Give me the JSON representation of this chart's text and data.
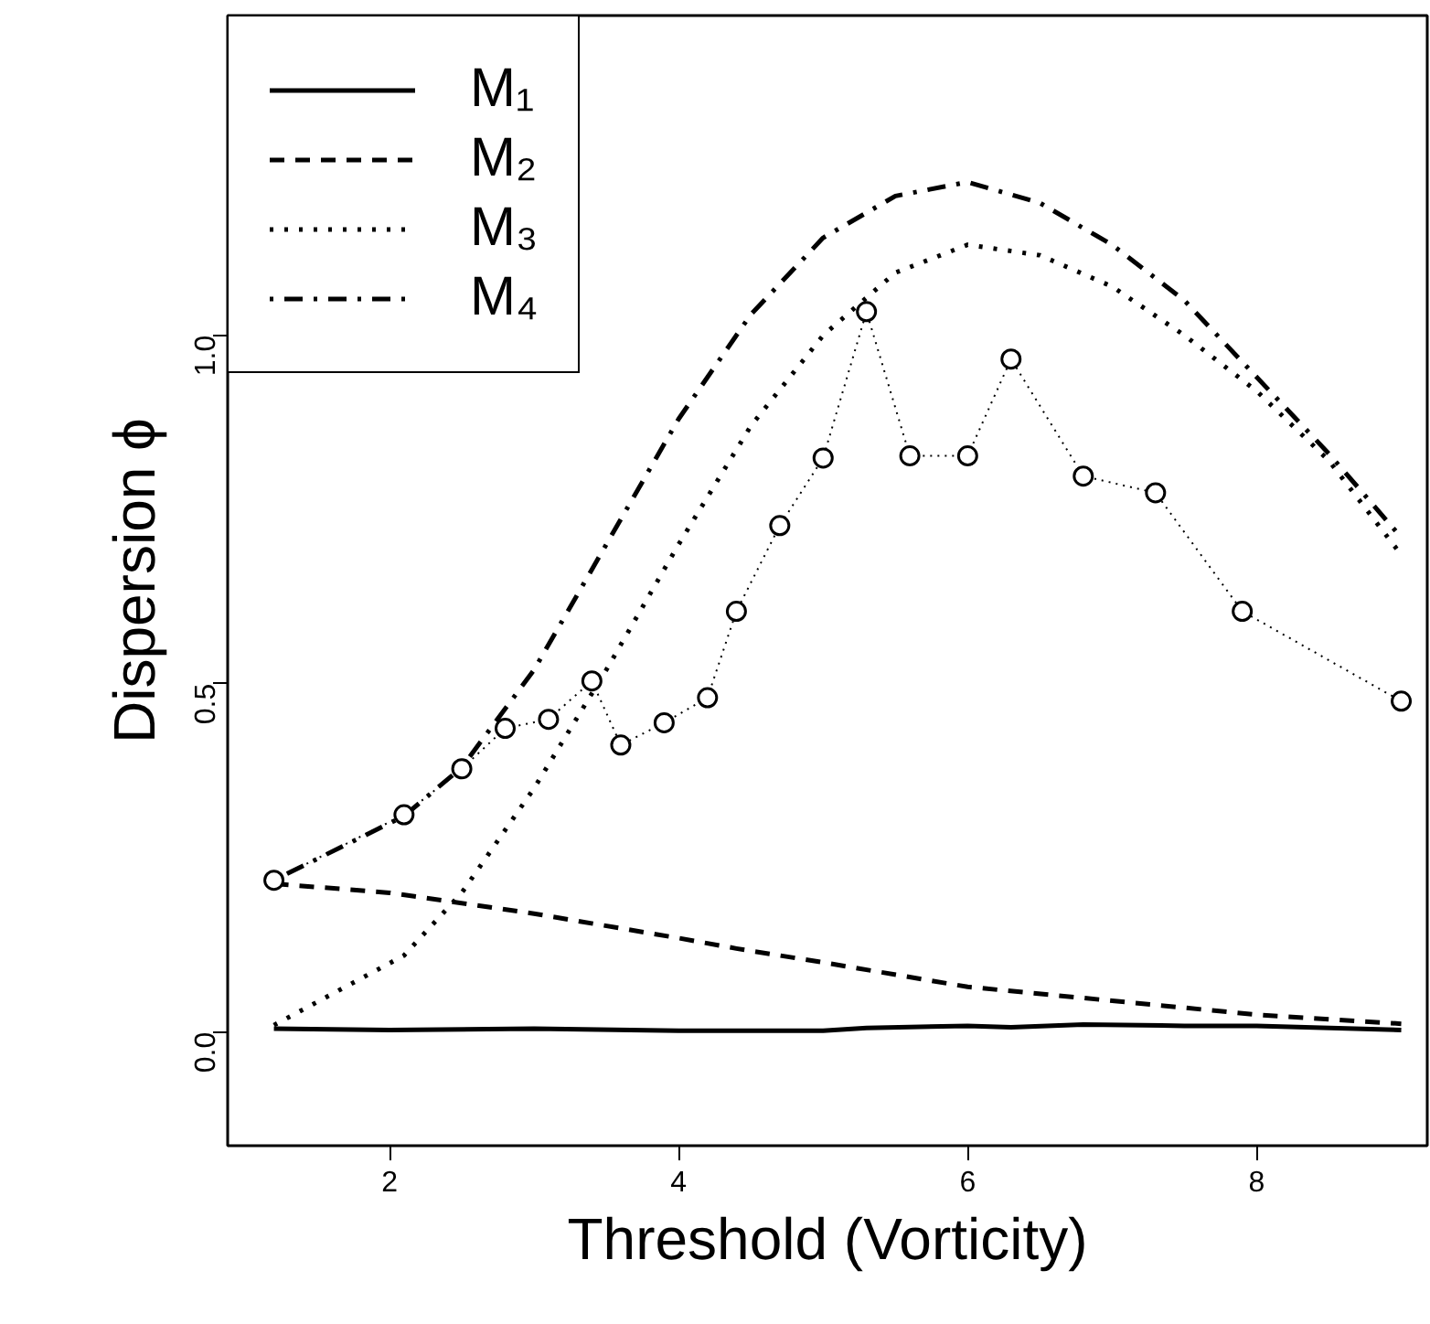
{
  "chart_data": {
    "type": "line",
    "xlabel": "Threshold (Vorticity)",
    "ylabel": "Dispersion ϕ",
    "xlim": [
      0.88,
      9.18
    ],
    "ylim": [
      -0.163,
      1.459
    ],
    "xticks": [
      2,
      4,
      6,
      8
    ],
    "yticks": [
      {
        "value": 0,
        "label": "0.0"
      },
      0.5,
      {
        "value": 1,
        "label": "1.0"
      }
    ],
    "grid": false,
    "legend": "top left",
    "x": [
      1.2,
      2.0,
      3.0,
      4.0,
      4.4,
      5.0,
      6.0,
      7.0,
      8.0,
      9.0
    ],
    "series": [
      {
        "name": "M₁",
        "color": "#000000",
        "line_style": "solid",
        "x": [
          1.2,
          2.0,
          3.0,
          4.0,
          5.0,
          5.3,
          6.0,
          6.3,
          6.8,
          7.5,
          8.0,
          9.0
        ],
        "values": [
          0.005,
          0.003,
          0.005,
          0.002,
          0.002,
          0.006,
          0.009,
          0.007,
          0.011,
          0.009,
          0.009,
          0.003
        ]
      },
      {
        "name": "M₂",
        "color": "#000000",
        "line_style": "dashed",
        "values": [
          0.213,
          0.2,
          0.17,
          0.135,
          0.12,
          0.1,
          0.065,
          0.045,
          0.025,
          0.012
        ]
      },
      {
        "name": "M₃",
        "color": "#000000",
        "line_style": "dotted",
        "x": [
          1.2,
          2.1,
          2.5,
          3.0,
          3.5,
          4.0,
          4.5,
          5.0,
          5.5,
          6.0,
          6.5,
          7.0,
          7.5,
          8.0,
          8.5,
          9.0
        ],
        "values": [
          0.01,
          0.11,
          0.2,
          0.35,
          0.52,
          0.7,
          0.87,
          1.0,
          1.09,
          1.13,
          1.115,
          1.07,
          1.0,
          0.92,
          0.82,
          0.685
        ]
      },
      {
        "name": "M₄",
        "color": "#000000",
        "line_style": "dashdot",
        "x": [
          1.2,
          2.1,
          2.5,
          3.0,
          3.5,
          4.0,
          4.5,
          5.0,
          5.5,
          6.0,
          6.5,
          7.0,
          7.5,
          8.0,
          8.5,
          9.0
        ],
        "values": [
          0.218,
          0.31,
          0.38,
          0.52,
          0.7,
          0.88,
          1.03,
          1.14,
          1.2,
          1.22,
          1.19,
          1.13,
          1.05,
          0.94,
          0.83,
          0.71
        ]
      },
      {
        "color": "#000000",
        "line_style": "dotted",
        "marker": "circle",
        "x": [
          1.2,
          2.1,
          2.5,
          2.8,
          3.1,
          3.4,
          3.6,
          3.9,
          4.2,
          4.4,
          4.7,
          5.0,
          5.3,
          5.6,
          6.0,
          6.3,
          6.8,
          7.3,
          7.9,
          9.0
        ],
        "values": [
          0.218,
          0.312,
          0.378,
          0.436,
          0.449,
          0.504,
          0.412,
          0.444,
          0.48,
          0.604,
          0.727,
          0.824,
          1.034,
          0.827,
          0.827,
          0.966,
          0.798,
          0.774,
          0.604,
          0.475
        ]
      }
    ]
  }
}
